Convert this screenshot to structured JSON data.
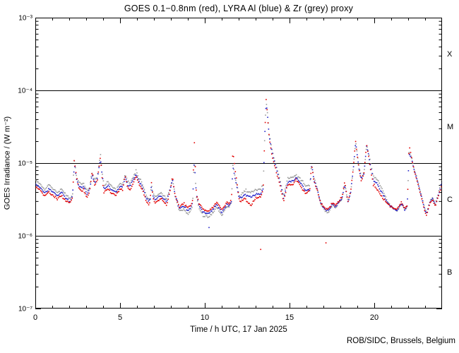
{
  "chart_data": {
    "type": "scatter",
    "title": "GOES 0.1−0.8nm (red), LYRA Al (blue) & Zr (grey) proxy",
    "xlabel": "Time / h UTC, 17 Jan 2025",
    "ylabel": "GOES Irradiance / (W m⁻²)",
    "footer": "ROB/SIDC, Brussels, Belgium",
    "xlim": [
      0,
      24
    ],
    "ylim": [
      1e-07,
      0.001
    ],
    "y_scale": "log",
    "grid": false,
    "x_major_ticks": [
      0,
      5,
      10,
      15,
      20
    ],
    "x_minor_tick_step_hours": 1,
    "y_major_ticks": [
      0.001,
      0.0001,
      1e-05,
      1e-06,
      1e-07
    ],
    "y_tick_labels": [
      "10⁻³",
      "10⁻⁴",
      "10⁻⁵",
      "10⁻⁶",
      "10⁻⁷"
    ],
    "hlines": [
      0.0001,
      1e-05,
      1e-06
    ],
    "flare_class_labels": [
      {
        "label": "X",
        "v": 0.00032
      },
      {
        "label": "M",
        "v": 3.2e-05
      },
      {
        "label": "C",
        "v": 3.2e-06
      },
      {
        "label": "B",
        "v": 3.2e-07
      }
    ],
    "value_scale": 1e-06,
    "t_hours": [
      0,
      0.3,
      0.55,
      0.8,
      1,
      1.3,
      1.55,
      1.8,
      2.05,
      2.2,
      2.3,
      2.42,
      2.55,
      2.7,
      2.85,
      3.05,
      3.2,
      3.35,
      3.5,
      3.65,
      3.85,
      3.95,
      4.05,
      4.3,
      4.55,
      4.75,
      5,
      5.15,
      5.3,
      5.45,
      5.6,
      5.8,
      5.95,
      6.1,
      6.3,
      6.55,
      6.7,
      6.78,
      6.85,
      6.95,
      7.1,
      7.4,
      7.6,
      7.75,
      7.95,
      8.1,
      8.25,
      8.5,
      8.75,
      9,
      9.2,
      9.28,
      9.38,
      9.5,
      9.65,
      9.9,
      10.2,
      10.5,
      10.7,
      11,
      11.3,
      11.45,
      11.58,
      11.65,
      11.8,
      12,
      12.1,
      12.35,
      12.7,
      13,
      13.3,
      13.45,
      13.55,
      13.62,
      13.7,
      13.8,
      13.95,
      14.1,
      14.35,
      14.65,
      14.9,
      15.2,
      15.4,
      15.7,
      15.95,
      16.1,
      16.2,
      16.3,
      16.45,
      16.6,
      16.85,
      17.1,
      17.3,
      17.55,
      17.7,
      17.9,
      18.1,
      18.25,
      18.45,
      18.6,
      18.75,
      18.9,
      19.1,
      19.25,
      19.4,
      19.55,
      19.75,
      19.95,
      20.15,
      20.5,
      20.8,
      21.1,
      21.35,
      21.6,
      21.8,
      21.95,
      22.05,
      22.2,
      22.35,
      22.55,
      22.75,
      23,
      23.1,
      23.3,
      23.45,
      23.6,
      23.8,
      24
    ],
    "series": [
      {
        "name": "GOES 0.1-0.8nm",
        "color": "#e10000",
        "values_1e6": [
          4.8,
          4.2,
          3.5,
          4.0,
          3.7,
          3.2,
          3.6,
          3.0,
          2.8,
          3.4,
          12.5,
          6.5,
          4.6,
          4.1,
          4.3,
          3.3,
          4.0,
          7.6,
          5.0,
          5.5,
          12.5,
          6.0,
          4.0,
          4.4,
          3.8,
          3.6,
          4.4,
          4.2,
          6.8,
          4.6,
          4.3,
          5.5,
          6.6,
          5.2,
          4.4,
          3.0,
          2.7,
          3.0,
          5.5,
          3.2,
          2.8,
          3.3,
          2.9,
          2.6,
          4.1,
          6.5,
          3.6,
          2.5,
          2.8,
          2.4,
          2.7,
          3.0,
          20.5,
          4.0,
          2.8,
          2.3,
          2.2,
          2.5,
          2.9,
          2.3,
          2.9,
          2.8,
          3.2,
          15,
          8.0,
          3.4,
          2.9,
          3.3,
          2.6,
          3.3,
          3.4,
          4.5,
          30,
          75,
          45,
          22,
          13.5,
          9.5,
          6.0,
          3.0,
          5.0,
          5.0,
          6.0,
          4.6,
          3.8,
          4.0,
          4.3,
          9.7,
          5.5,
          4.5,
          2.8,
          2.4,
          2.3,
          2.9,
          2.6,
          3.0,
          3.4,
          5.5,
          2.9,
          4.0,
          8.0,
          20,
          8.0,
          5.6,
          7.5,
          18.5,
          9.0,
          5.0,
          4.4,
          3.3,
          2.7,
          2.4,
          2.3,
          2.9,
          2.4,
          2.6,
          18,
          12,
          8.0,
          5.5,
          3.6,
          2.1,
          1.9,
          2.9,
          3.1,
          2.5,
          3.6,
          5.2
        ]
      },
      {
        "name": "LYRA Al proxy",
        "color": "#2525c8",
        "values_1e6": [
          5.2,
          4.6,
          3.9,
          4.4,
          4.1,
          3.5,
          4.0,
          3.3,
          3.0,
          3.5,
          10,
          6.2,
          5.0,
          4.6,
          4.8,
          3.7,
          4.3,
          7.0,
          5.4,
          5.9,
          11.5,
          6.6,
          4.4,
          4.9,
          4.2,
          4.0,
          4.8,
          4.6,
          6.4,
          5.0,
          4.8,
          6.0,
          7.0,
          5.7,
          4.8,
          3.3,
          3.0,
          3.1,
          5.0,
          3.5,
          3.1,
          3.6,
          3.2,
          2.9,
          4.3,
          5.8,
          3.6,
          2.4,
          2.6,
          2.2,
          2.5,
          2.8,
          11,
          3.8,
          2.6,
          2.1,
          2.0,
          2.3,
          2.7,
          2.1,
          2.7,
          2.6,
          3.0,
          9.0,
          6.0,
          3.5,
          3.2,
          3.7,
          3.4,
          3.7,
          3.8,
          4.6,
          28,
          70,
          46,
          23,
          14.5,
          10.5,
          6.6,
          3.3,
          5.5,
          5.6,
          6.4,
          5.1,
          4.2,
          4.3,
          4.5,
          9.0,
          5.8,
          4.6,
          2.8,
          2.3,
          2.2,
          2.8,
          2.5,
          2.9,
          3.3,
          5.0,
          2.9,
          3.9,
          7.6,
          19,
          8.4,
          6.0,
          7.3,
          17.5,
          9.9,
          5.8,
          5.3,
          3.7,
          2.8,
          2.4,
          2.2,
          2.8,
          2.3,
          2.5,
          13.5,
          11.5,
          8.0,
          5.6,
          3.7,
          2.2,
          2.0,
          3.0,
          3.2,
          2.6,
          3.8,
          5.5
        ]
      },
      {
        "name": "LYRA Zr proxy",
        "color": "#9a9a9a",
        "values_1e6": [
          5.8,
          5.1,
          4.3,
          5.0,
          4.5,
          3.9,
          4.4,
          3.7,
          3.3,
          3.7,
          11,
          6.8,
          5.6,
          5.1,
          5.3,
          4.1,
          4.7,
          7.4,
          5.9,
          6.4,
          13,
          7.2,
          4.9,
          5.4,
          4.7,
          4.4,
          5.3,
          5.1,
          7.0,
          5.6,
          5.3,
          6.6,
          7.8,
          6.3,
          5.3,
          3.6,
          3.2,
          3.3,
          5.2,
          3.8,
          3.4,
          4.0,
          3.5,
          3.2,
          4.6,
          6.0,
          3.5,
          2.2,
          2.3,
          2.0,
          2.3,
          2.6,
          12,
          3.6,
          2.4,
          1.9,
          1.8,
          2.1,
          2.5,
          1.9,
          2.6,
          2.5,
          2.9,
          9.5,
          6.3,
          3.8,
          3.5,
          4.2,
          3.9,
          4.3,
          4.4,
          5.0,
          29,
          72,
          48,
          25,
          16,
          11.5,
          7.2,
          3.6,
          6.2,
          6.3,
          7.0,
          5.8,
          4.8,
          4.8,
          4.9,
          9.5,
          6.3,
          4.8,
          2.7,
          2.2,
          2.1,
          2.7,
          2.4,
          2.8,
          3.2,
          5.2,
          2.9,
          3.9,
          7.8,
          19.5,
          8.8,
          6.4,
          7.6,
          18,
          10.8,
          6.6,
          6.2,
          4.2,
          2.9,
          2.4,
          2.2,
          2.8,
          2.3,
          2.5,
          14,
          12,
          8.3,
          5.9,
          3.9,
          2.3,
          2.1,
          3.1,
          3.4,
          2.7,
          4.0,
          5.9
        ]
      }
    ],
    "stray_points": [
      {
        "t": 10.25,
        "v_1e6": 1.3,
        "series": 1
      },
      {
        "t": 13.3,
        "v_1e6": 0.65,
        "series": 0
      },
      {
        "t": 17.15,
        "v_1e6": 0.8,
        "series": 0
      }
    ]
  },
  "colors": {
    "background": "#ffffff",
    "axis": "#000000",
    "text": "#000000"
  }
}
